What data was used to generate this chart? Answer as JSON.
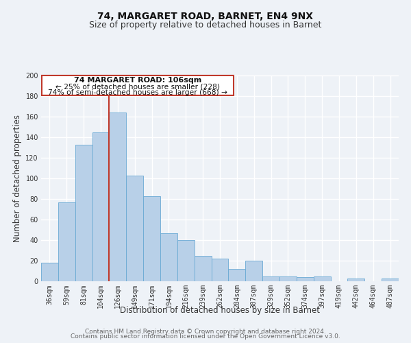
{
  "title": "74, MARGARET ROAD, BARNET, EN4 9NX",
  "subtitle": "Size of property relative to detached houses in Barnet",
  "xlabel": "Distribution of detached houses by size in Barnet",
  "ylabel": "Number of detached properties",
  "categories": [
    "36sqm",
    "59sqm",
    "81sqm",
    "104sqm",
    "126sqm",
    "149sqm",
    "171sqm",
    "194sqm",
    "216sqm",
    "239sqm",
    "262sqm",
    "284sqm",
    "307sqm",
    "329sqm",
    "352sqm",
    "374sqm",
    "397sqm",
    "419sqm",
    "442sqm",
    "464sqm",
    "487sqm"
  ],
  "values": [
    18,
    77,
    133,
    145,
    164,
    103,
    83,
    47,
    40,
    25,
    22,
    12,
    20,
    5,
    5,
    4,
    5,
    0,
    3,
    0,
    3
  ],
  "bar_color": "#b8d0e8",
  "bar_edge_color": "#6aaad4",
  "property_line_x": 3.5,
  "annotation_box_edge_color": "#c0392b",
  "annotation_title": "74 MARGARET ROAD: 106sqm",
  "annotation_line1": "← 25% of detached houses are smaller (228)",
  "annotation_line2": "74% of semi-detached houses are larger (668) →",
  "ylim": [
    0,
    200
  ],
  "yticks": [
    0,
    20,
    40,
    60,
    80,
    100,
    120,
    140,
    160,
    180,
    200
  ],
  "footer_line1": "Contains HM Land Registry data © Crown copyright and database right 2024.",
  "footer_line2": "Contains public sector information licensed under the Open Government Licence v3.0.",
  "background_color": "#eef2f7",
  "grid_color": "#ffffff",
  "title_fontsize": 10,
  "subtitle_fontsize": 9,
  "axis_label_fontsize": 8.5,
  "tick_fontsize": 7,
  "annotation_fontsize": 8,
  "footer_fontsize": 6.5
}
